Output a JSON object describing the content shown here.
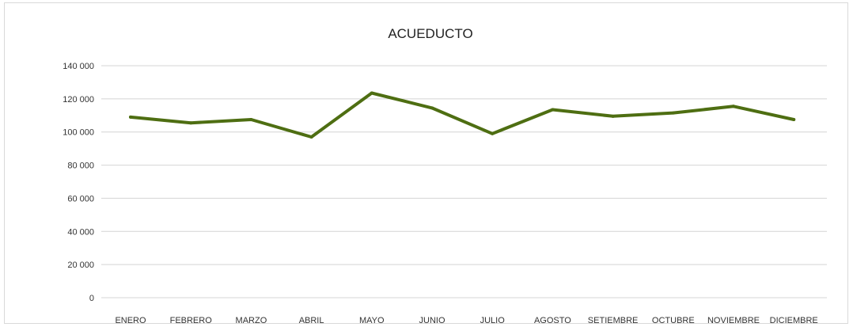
{
  "chart_data": {
    "type": "line",
    "title": "ACUEDUCTO",
    "xlabel": "",
    "ylabel": "",
    "categories": [
      "ENERO",
      "FEBRERO",
      "MARZO",
      "ABRIL",
      "MAYO",
      "JUNIO",
      "JULIO",
      "AGOSTO",
      "SETIEMBRE",
      "OCTUBRE",
      "NOVIEMBRE",
      "DICIEMBRE"
    ],
    "y_ticks": [
      "0",
      "20 000",
      "40 000",
      "60 000",
      "80 000",
      "100 000",
      "120 000",
      "140 000"
    ],
    "ylim": [
      0,
      140000
    ],
    "grid": true,
    "legend": "none",
    "series": [
      {
        "values": [
          109000,
          105500,
          107500,
          97000,
          123500,
          114500,
          99000,
          113500,
          109500,
          111500,
          115500,
          107500
        ],
        "color": "#4e6e12"
      }
    ]
  }
}
